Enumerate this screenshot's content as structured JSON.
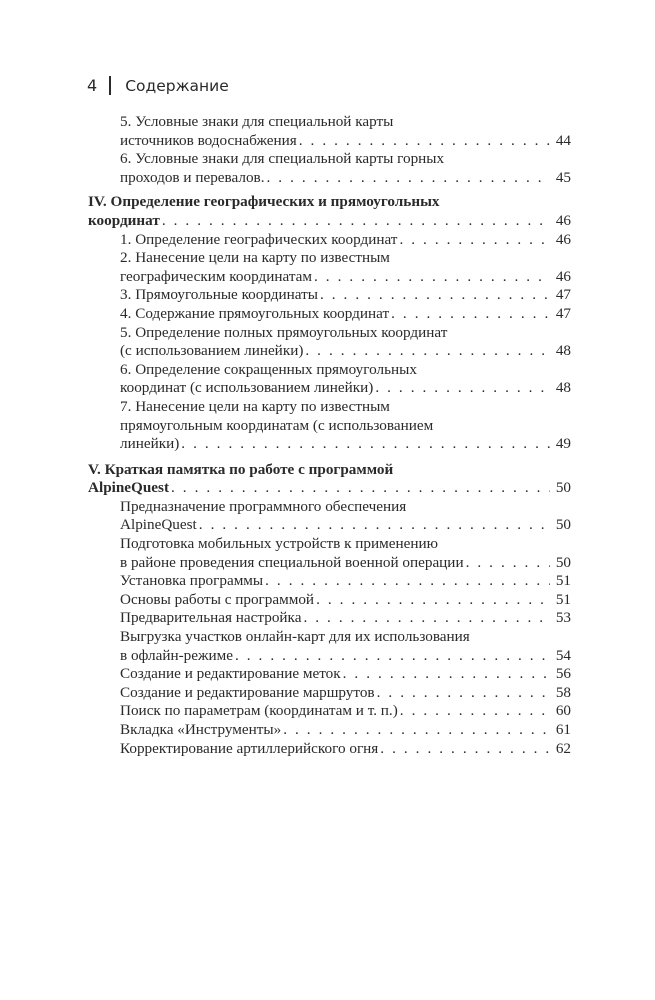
{
  "header": {
    "page_number": "4",
    "title": "Содержание"
  },
  "toc": [
    {
      "kind": "sub",
      "lines": [
        "5.  Условные знаки для специальной карты",
        "источников водоснабжения"
      ],
      "page": "44"
    },
    {
      "kind": "sub",
      "lines": [
        "6.  Условные знаки для специальной карты горных",
        "проходов и перевалов."
      ],
      "page": "45"
    },
    {
      "kind": "section",
      "lines": [
        "IV. Определение географических и прямоугольных",
        "координат"
      ],
      "page": "46"
    },
    {
      "kind": "sub",
      "lines": [
        "1.  Определение географических координат"
      ],
      "page": "46"
    },
    {
      "kind": "sub",
      "lines": [
        "2.  Нанесение цели на карту по известным",
        "географическим координатам"
      ],
      "page": "46"
    },
    {
      "kind": "sub",
      "lines": [
        "3.  Прямоугольные координаты"
      ],
      "page": "47"
    },
    {
      "kind": "sub",
      "lines": [
        "4.  Содержание прямоугольных координат"
      ],
      "page": "47"
    },
    {
      "kind": "sub",
      "lines": [
        "5.  Определение полных прямоугольных координат",
        "(с использованием линейки)"
      ],
      "page": "48"
    },
    {
      "kind": "sub",
      "lines": [
        "6.  Определение сокращенных прямоугольных",
        "координат (с использованием линейки)"
      ],
      "page": "48"
    },
    {
      "kind": "sub",
      "lines": [
        "7.  Нанесение цели на карту по известным",
        "прямоугольным координатам (с использованием",
        "линейки)"
      ],
      "page": "49"
    },
    {
      "kind": "section v",
      "lines": [
        "V. Краткая памятка по работе с программой",
        "AlpineQuest"
      ],
      "page": "50"
    },
    {
      "kind": "sub",
      "lines": [
        "Предназначение программного обеспечения",
        "AlpineQuest"
      ],
      "page": "50"
    },
    {
      "kind": "sub",
      "lines": [
        "Подготовка мобильных устройств к применению",
        "в районе проведения специальной военной операции"
      ],
      "page": "50"
    },
    {
      "kind": "sub",
      "lines": [
        "Установка программы"
      ],
      "page": "51"
    },
    {
      "kind": "sub",
      "lines": [
        "Основы работы с программой"
      ],
      "page": "51"
    },
    {
      "kind": "sub",
      "lines": [
        "Предварительная настройка"
      ],
      "page": "53"
    },
    {
      "kind": "sub",
      "lines": [
        "Выгрузка участков онлайн-карт для их использования",
        "в офлайн-режиме"
      ],
      "page": "54"
    },
    {
      "kind": "sub",
      "lines": [
        "Создание и редактирование меток"
      ],
      "page": "56"
    },
    {
      "kind": "sub",
      "lines": [
        "Создание и редактирование маршрутов"
      ],
      "page": "58"
    },
    {
      "kind": "sub",
      "lines": [
        "Поиск по параметрам (координатам и т. п.)"
      ],
      "page": "60"
    },
    {
      "kind": "sub",
      "lines": [
        "Вкладка «Инструменты»"
      ],
      "page": "61"
    },
    {
      "kind": "sub",
      "lines": [
        "Корректирование артиллерийского огня"
      ],
      "page": "62"
    }
  ]
}
